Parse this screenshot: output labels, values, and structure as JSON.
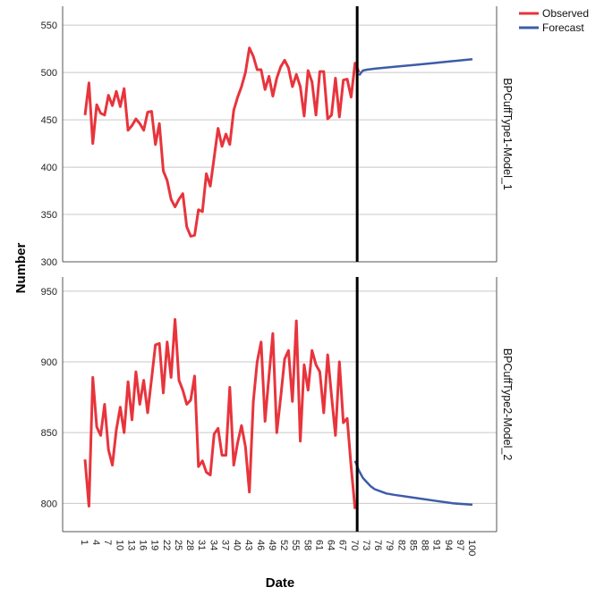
{
  "chart_data": {
    "type": "line",
    "xlabel": "Date",
    "ylabel": "Number",
    "x_ticks": [
      1,
      4,
      7,
      10,
      13,
      16,
      19,
      22,
      25,
      28,
      31,
      34,
      37,
      40,
      43,
      46,
      49,
      52,
      55,
      58,
      61,
      64,
      67,
      70,
      73,
      76,
      79,
      82,
      85,
      88,
      91,
      94,
      97,
      100
    ],
    "xlim": [
      1,
      100
    ],
    "forecast_origin": 71,
    "legend": [
      {
        "name": "Observed",
        "color": "#e8343c"
      },
      {
        "name": "Forecast",
        "color": "#3d5ca8"
      }
    ],
    "legend_position": "top-right",
    "grid": "horizontal",
    "panels": [
      {
        "label": "BPCuffType1-Model_1",
        "ylim": [
          300,
          570
        ],
        "yticks": [
          300,
          350,
          400,
          450,
          500,
          550
        ],
        "observed": {
          "x": [
            1,
            2,
            3,
            4,
            5,
            6,
            7,
            8,
            9,
            10,
            11,
            12,
            13,
            14,
            15,
            16,
            17,
            18,
            19,
            20,
            21,
            22,
            23,
            24,
            25,
            26,
            27,
            28,
            29,
            30,
            31,
            32,
            33,
            34,
            35,
            36,
            37,
            38,
            39,
            40,
            41,
            42,
            43,
            44,
            45,
            46,
            47,
            48,
            49,
            50,
            51,
            52,
            53,
            54,
            55,
            56,
            57,
            58,
            59,
            60,
            61,
            62,
            63,
            64,
            65,
            66,
            67,
            68,
            69,
            70,
            71
          ],
          "y": [
            455,
            489,
            425,
            466,
            457,
            455,
            476,
            465,
            480,
            464,
            483,
            439,
            444,
            451,
            446,
            439,
            458,
            459,
            424,
            446,
            396,
            386,
            366,
            358,
            366,
            372,
            337,
            327,
            328,
            355,
            353,
            393,
            380,
            410,
            441,
            422,
            435,
            424,
            460,
            474,
            485,
            500,
            526,
            517,
            503,
            503,
            482,
            496,
            475,
            494,
            506,
            513,
            505,
            485,
            498,
            485,
            454,
            502,
            490,
            455,
            501,
            501,
            451,
            455,
            494,
            453,
            492,
            493,
            474,
            510,
            500
          ]
        },
        "forecast": {
          "x": [
            71,
            72,
            73,
            75,
            80,
            85,
            90,
            95,
            100
          ],
          "y": [
            497,
            502,
            503,
            504,
            506,
            508,
            510,
            512,
            514
          ]
        }
      },
      {
        "label": "BPCuffType2-Model_2",
        "ylim": [
          780,
          960
        ],
        "yticks": [
          800,
          850,
          900,
          950
        ],
        "observed": {
          "x": [
            1,
            2,
            3,
            4,
            5,
            6,
            7,
            8,
            9,
            10,
            11,
            12,
            13,
            14,
            15,
            16,
            17,
            18,
            19,
            20,
            21,
            22,
            23,
            24,
            25,
            26,
            27,
            28,
            29,
            30,
            31,
            32,
            33,
            34,
            35,
            36,
            37,
            38,
            39,
            40,
            41,
            42,
            43,
            44,
            45,
            46,
            47,
            48,
            49,
            50,
            51,
            52,
            53,
            54,
            55,
            56,
            57,
            58,
            59,
            60,
            61,
            62,
            63,
            64,
            65,
            66,
            67,
            68,
            69,
            70
          ],
          "y": [
            831,
            798,
            889,
            854,
            848,
            870,
            838,
            827,
            852,
            868,
            850,
            886,
            859,
            893,
            870,
            887,
            864,
            888,
            912,
            913,
            878,
            914,
            889,
            930,
            887,
            880,
            870,
            873,
            890,
            826,
            830,
            822,
            820,
            849,
            853,
            834,
            834,
            882,
            827,
            843,
            855,
            840,
            808,
            872,
            900,
            914,
            858,
            890,
            920,
            850,
            875,
            902,
            908,
            872,
            929,
            844,
            898,
            880,
            908,
            898,
            893,
            864,
            905,
            876,
            848,
            900,
            857,
            860,
            826,
            796
          ]
        },
        "forecast": {
          "x": [
            70,
            71,
            72,
            73,
            74,
            75,
            76,
            78,
            80,
            85,
            90,
            95,
            100
          ],
          "y": [
            830,
            823,
            818,
            815,
            812,
            810,
            809,
            807,
            806,
            804,
            802,
            800,
            799
          ]
        }
      }
    ]
  }
}
